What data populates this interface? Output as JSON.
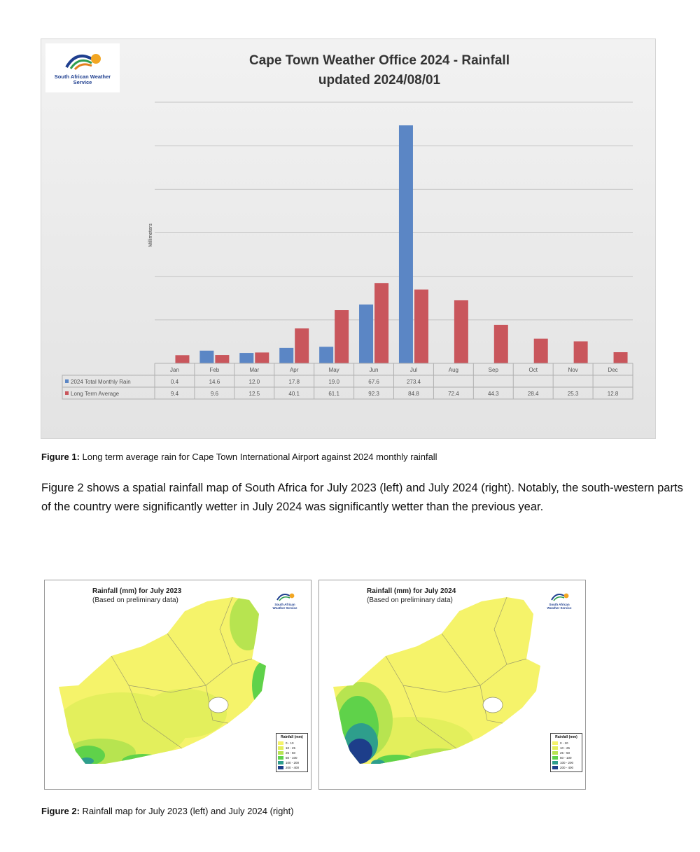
{
  "chart": {
    "logo_text": "South African Weather Service",
    "title_line1": "Cape Town Weather Office 2024 - Rainfall",
    "title_line2": "updated 2024/08/01",
    "ylabel": "Millimeters",
    "legend_2024": "2024 Total Monthly Rain",
    "legend_lta": "Long Term Average"
  },
  "chart_data": {
    "type": "bar",
    "title": "Cape Town Weather Office 2024 - Rainfall updated 2024/08/01",
    "ylabel": "Millimeters",
    "xlabel": "",
    "ylim": [
      0,
      300
    ],
    "grid": true,
    "legend": "data table below chart",
    "categories": [
      "Jan",
      "Feb",
      "Mar",
      "Apr",
      "May",
      "Jun",
      "Jul",
      "Aug",
      "Sep",
      "Oct",
      "Nov",
      "Dec"
    ],
    "series": [
      {
        "name": "2024 Total Monthly Rain",
        "color": "#5b86c5",
        "values": [
          0.4,
          14.6,
          12.0,
          17.8,
          19.0,
          67.6,
          273.4,
          null,
          null,
          null,
          null,
          null
        ],
        "labels": [
          "0.4",
          "14.6",
          "12.0",
          "17.8",
          "19.0",
          "67.6",
          "273.4",
          "",
          "",
          "",
          "",
          ""
        ]
      },
      {
        "name": "Long Term Average",
        "color": "#c9565c",
        "values": [
          9.4,
          9.6,
          12.5,
          40.1,
          61.1,
          92.3,
          84.8,
          72.4,
          44.3,
          28.4,
          25.3,
          12.8
        ],
        "labels": [
          "9.4",
          "9.6",
          "12.5",
          "40.1",
          "61.1",
          "92.3",
          "84.8",
          "72.4",
          "44.3",
          "28.4",
          "25.3",
          "12.8"
        ]
      }
    ]
  },
  "figure1_caption": {
    "label": "Figure 1:",
    "text": " Long term average rain for Cape Town International Airport against 2024 monthly rainfall"
  },
  "paragraph": "Figure 2 shows a spatial rainfall map of South Africa for July 2023 (left) and July 2024 (right). Notably, the south-western parts of the country were significantly wetter in July 2024 was significantly wetter than the previous year.",
  "maps": [
    {
      "title": "Rainfall (mm) for July 2023",
      "subtitle": "(Based on preliminary data)",
      "logo_text": "South African Weather Service",
      "legend_title": "Rainfall (mm)",
      "legend": [
        {
          "label": "0 - 10",
          "color": "#f5f36a"
        },
        {
          "label": "10 - 25",
          "color": "#e3ef5c"
        },
        {
          "label": "25 - 50",
          "color": "#b7e450"
        },
        {
          "label": "50 - 100",
          "color": "#5fd24a"
        },
        {
          "label": "100 - 200",
          "color": "#2e9e8c"
        },
        {
          "label": "200 - 400",
          "color": "#1d3e8a"
        }
      ]
    },
    {
      "title": "Rainfall (mm) for July 2024",
      "subtitle": "(Based on preliminary data)",
      "logo_text": "South African Weather Service",
      "legend_title": "Rainfall (mm)",
      "legend": [
        {
          "label": "0 - 10",
          "color": "#f5f36a"
        },
        {
          "label": "10 - 25",
          "color": "#e3ef5c"
        },
        {
          "label": "25 - 50",
          "color": "#b7e450"
        },
        {
          "label": "50 - 100",
          "color": "#5fd24a"
        },
        {
          "label": "100 - 200",
          "color": "#2e9e8c"
        },
        {
          "label": "200 - 400",
          "color": "#1d3e8a"
        }
      ]
    }
  ],
  "figure2_caption": {
    "label": "Figure 2:",
    "text": " Rainfall map for July 2023 (left) and July 2024 (right)"
  }
}
